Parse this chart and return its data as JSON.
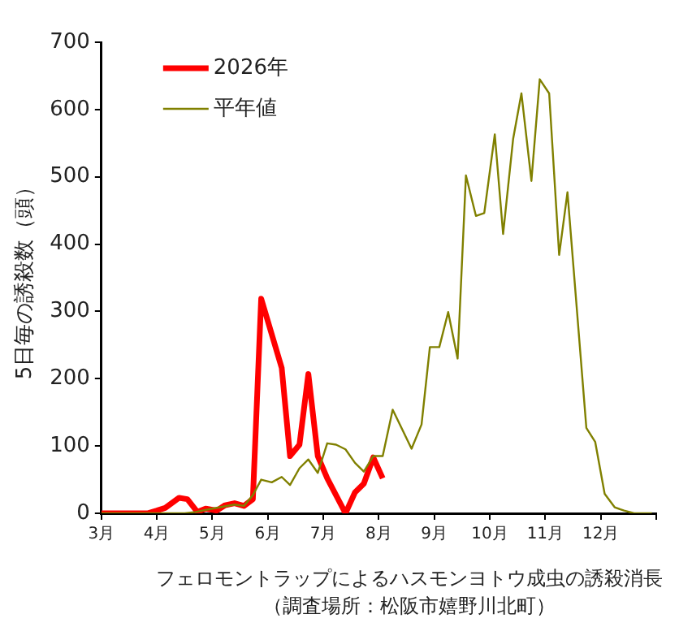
{
  "chart_data": {
    "type": "line",
    "ylabel": "5日毎の誘殺数（頭）",
    "annotations": [
      "フェロモントラップによるハスモンヨトウ成虫の誘殺消長",
      "（調査場所：松阪市嬉野川北町）"
    ],
    "xlim": [
      3,
      13
    ],
    "xticks": [
      {
        "value": 3,
        "label": "3月"
      },
      {
        "value": 4,
        "label": "4月"
      },
      {
        "value": 5,
        "label": "5月"
      },
      {
        "value": 6,
        "label": "6月"
      },
      {
        "value": 7,
        "label": "7月"
      },
      {
        "value": 8,
        "label": "8月"
      },
      {
        "value": 9,
        "label": "9月"
      },
      {
        "value": 10,
        "label": "10月"
      },
      {
        "value": 11,
        "label": "11月"
      },
      {
        "value": 12,
        "label": "12月"
      },
      {
        "value": 13,
        "label": null
      }
    ],
    "ylim": [
      0,
      700
    ],
    "yticks": [
      0,
      100,
      200,
      300,
      400,
      500,
      600,
      700
    ],
    "grid": false,
    "legend": "top left",
    "marker": "none",
    "line_style": "solid",
    "series": [
      {
        "name": "2026年",
        "color": "#ff0000",
        "x": [
          3.0,
          3.5,
          3.83,
          4.0,
          4.15,
          4.4,
          4.55,
          4.73,
          4.88,
          5.08,
          5.23,
          5.4,
          5.57,
          5.73,
          5.88,
          6.25,
          6.4,
          6.57,
          6.73,
          6.9,
          7.07,
          7.4,
          7.57,
          7.73,
          7.9,
          8.07
        ],
        "values": [
          0,
          0,
          0,
          4,
          8,
          23,
          21,
          2,
          7,
          4,
          12,
          15,
          11,
          21,
          319,
          216,
          85,
          102,
          207,
          85,
          52,
          0,
          31,
          44,
          83,
          52
        ]
      },
      {
        "name": "平年値",
        "color": "#808000",
        "x": [
          3.0,
          4.5,
          4.7,
          5.0,
          5.4,
          5.57,
          5.73,
          5.88,
          6.07,
          6.25,
          6.4,
          6.57,
          6.73,
          6.9,
          7.07,
          7.23,
          7.4,
          7.57,
          7.73,
          7.9,
          8.07,
          8.25,
          8.59,
          8.77,
          8.92,
          9.09,
          9.25,
          9.42,
          9.57,
          9.75,
          9.9,
          10.09,
          10.24,
          10.42,
          10.57,
          10.75,
          10.9,
          11.07,
          11.25,
          11.4,
          11.74,
          11.9,
          12.07,
          12.25,
          12.42,
          12.6,
          12.92
        ],
        "values": [
          0,
          0,
          2,
          7,
          13,
          11,
          27,
          50,
          46,
          54,
          42,
          67,
          80,
          60,
          104,
          102,
          95,
          75,
          62,
          85,
          85,
          154,
          96,
          132,
          247,
          247,
          299,
          230,
          502,
          442,
          446,
          563,
          415,
          556,
          624,
          494,
          645,
          624,
          384,
          477,
          127,
          106,
          29,
          9,
          4,
          0,
          0
        ]
      }
    ]
  }
}
